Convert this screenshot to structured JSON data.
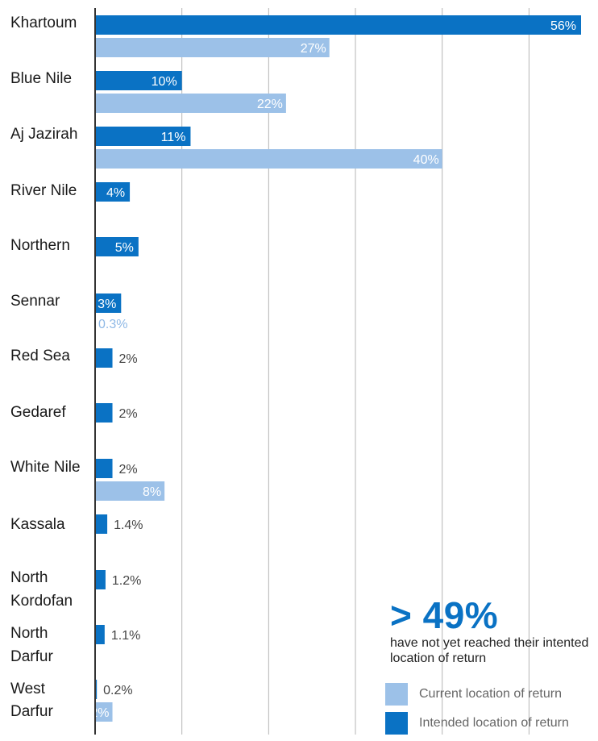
{
  "chart_data": {
    "type": "bar",
    "orientation": "horizontal",
    "categories": [
      "Khartoum",
      "Blue Nile",
      "Aj Jazirah",
      "River Nile",
      "Northern",
      "Sennar",
      "Red Sea",
      "Gedaref",
      "White Nile",
      "Kassala",
      "North Kordofan",
      "North Darfur",
      "West Darfur"
    ],
    "series": [
      {
        "name": "Intended location of return",
        "color": "#0a72c4",
        "values": [
          56,
          10,
          11,
          4,
          5,
          3,
          2,
          2,
          2,
          1.4,
          1.2,
          1.1,
          0.2
        ],
        "labels": [
          "56%",
          "10%",
          "11%",
          "4%",
          "5%",
          "3%",
          "2%",
          "2%",
          "2%",
          "1.4%",
          "1.2%",
          "1.1%",
          "0.2%"
        ]
      },
      {
        "name": "Current location of return",
        "color": "#9cc1e8",
        "values": [
          27,
          22,
          40,
          null,
          null,
          0.3,
          null,
          null,
          8,
          null,
          null,
          null,
          2
        ],
        "labels": [
          "27%",
          "22%",
          "40%",
          "",
          "",
          "0.3%",
          "",
          "",
          "8%",
          "",
          "",
          "",
          "2%"
        ]
      }
    ],
    "xlim": [
      0,
      58
    ],
    "grid": true,
    "legend_position": "bottom-right"
  },
  "callout": {
    "big": "> 49%",
    "text": "have not yet reached their intented location of return"
  },
  "legend": {
    "current": "Current location of return",
    "intended": "Intended location of return"
  }
}
